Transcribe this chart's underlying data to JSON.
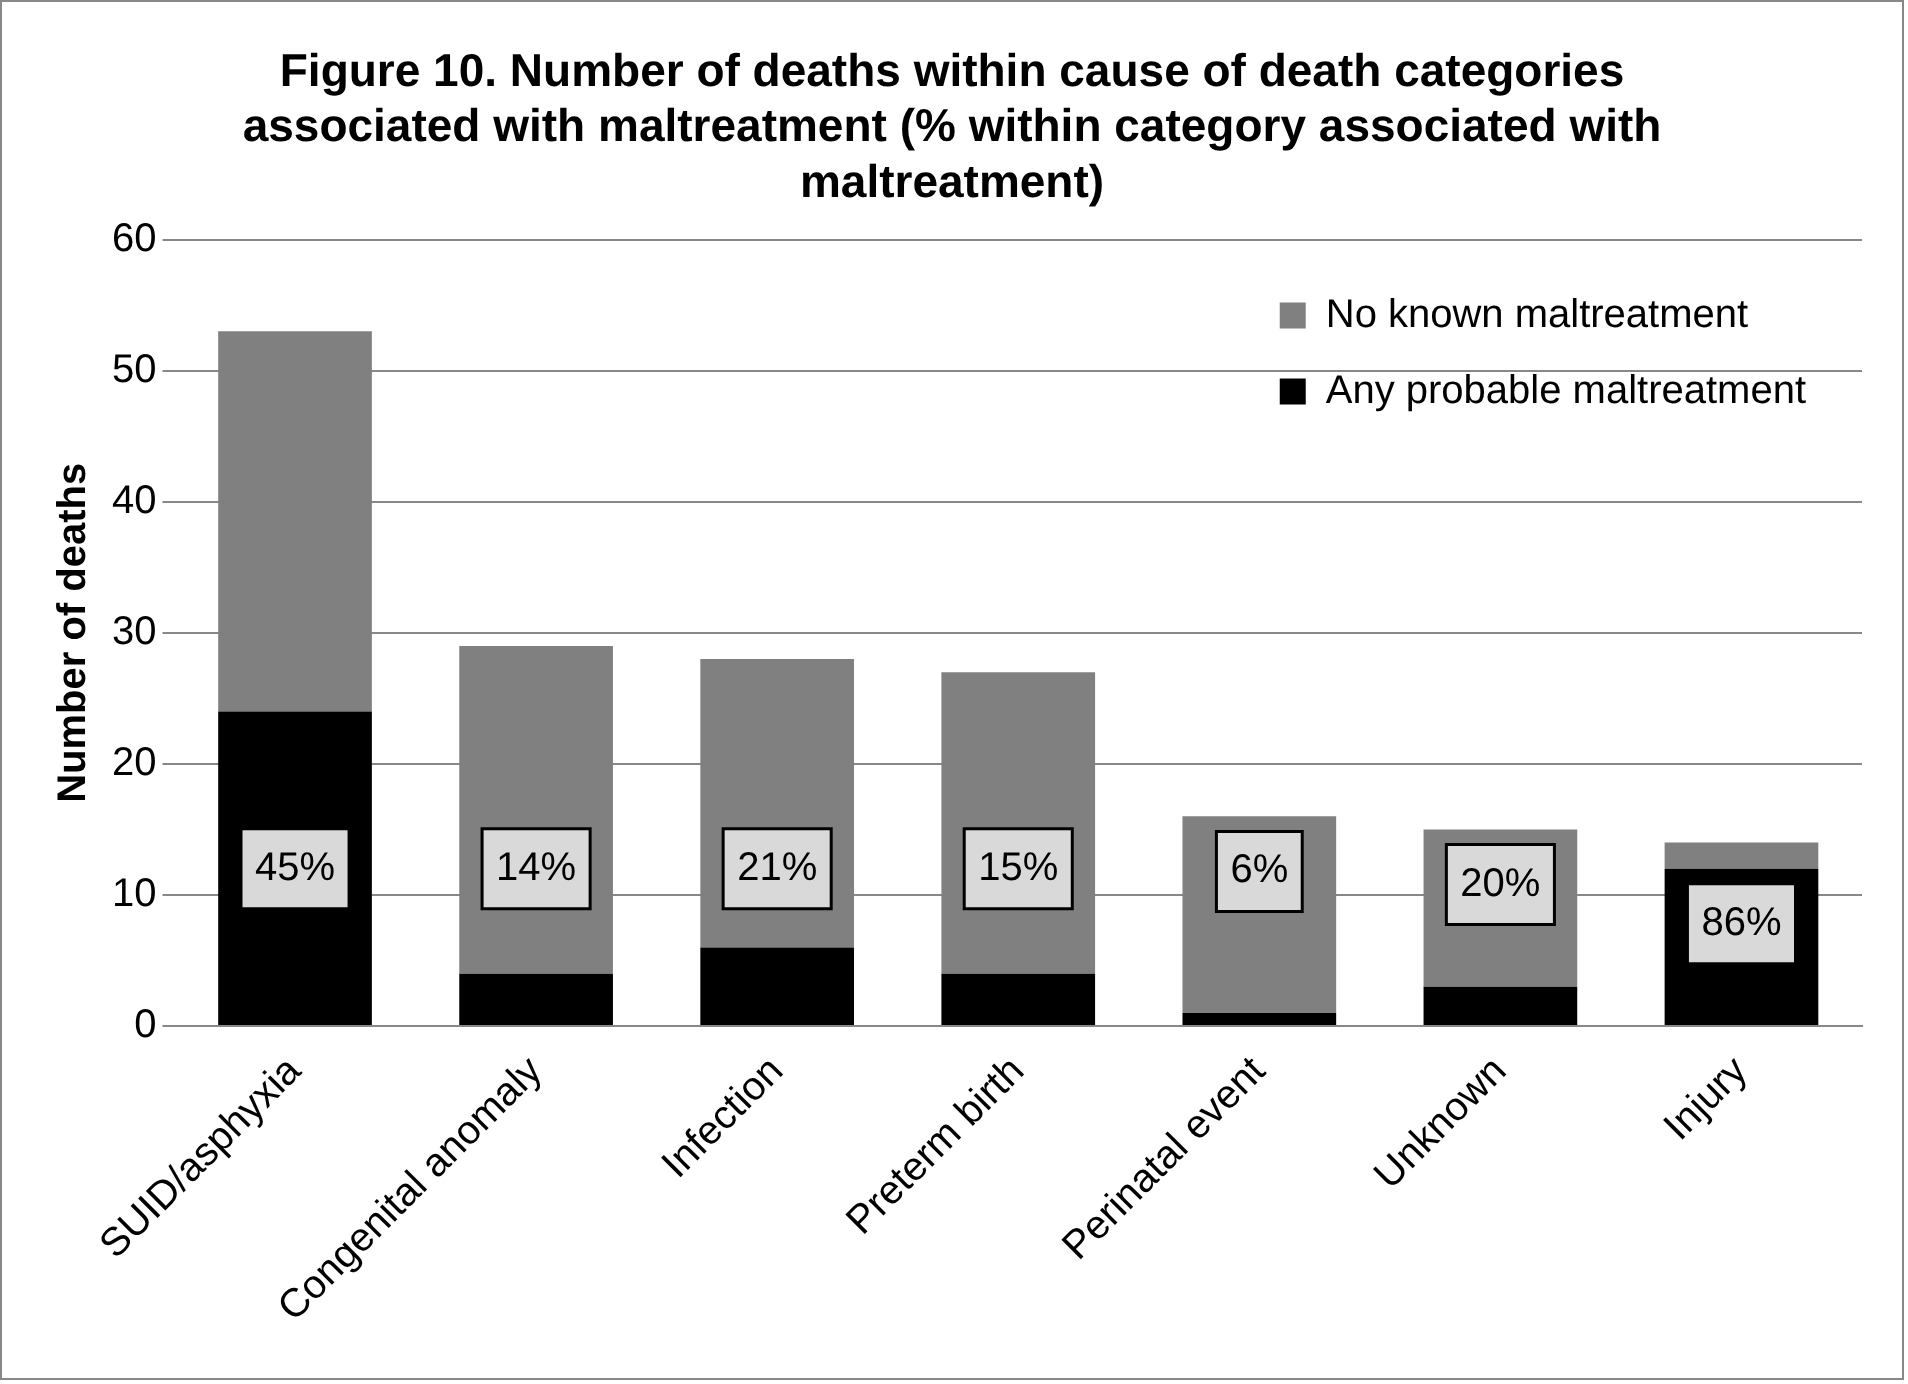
{
  "chart_data": {
    "type": "bar",
    "stacked": true,
    "title": "Figure 10. Number of deaths within cause of death categories associated with maltreatment (% within category associated with maltreatment)",
    "ylabel": "Number of deaths",
    "categories": [
      "SUID/asphyxia",
      "Congenital anomaly",
      "Infection",
      "Preterm birth",
      "Perinatal event",
      "Unknown",
      "Injury"
    ],
    "series": [
      {
        "name": "Any probable maltreatment",
        "color": "#000000",
        "values": [
          24,
          4,
          6,
          4,
          1,
          3,
          12
        ]
      },
      {
        "name": "No known maltreatment",
        "color": "#808080",
        "values": [
          29,
          25,
          22,
          23,
          15,
          12,
          2
        ]
      }
    ],
    "ylim": [
      0,
      60
    ],
    "yticks": [
      0,
      10,
      20,
      30,
      40,
      50,
      60
    ],
    "grid": "y",
    "legend": "top right",
    "annotations": [
      "45%",
      "14%",
      "21%",
      "15%",
      "6%",
      "20%",
      "86%"
    ]
  }
}
